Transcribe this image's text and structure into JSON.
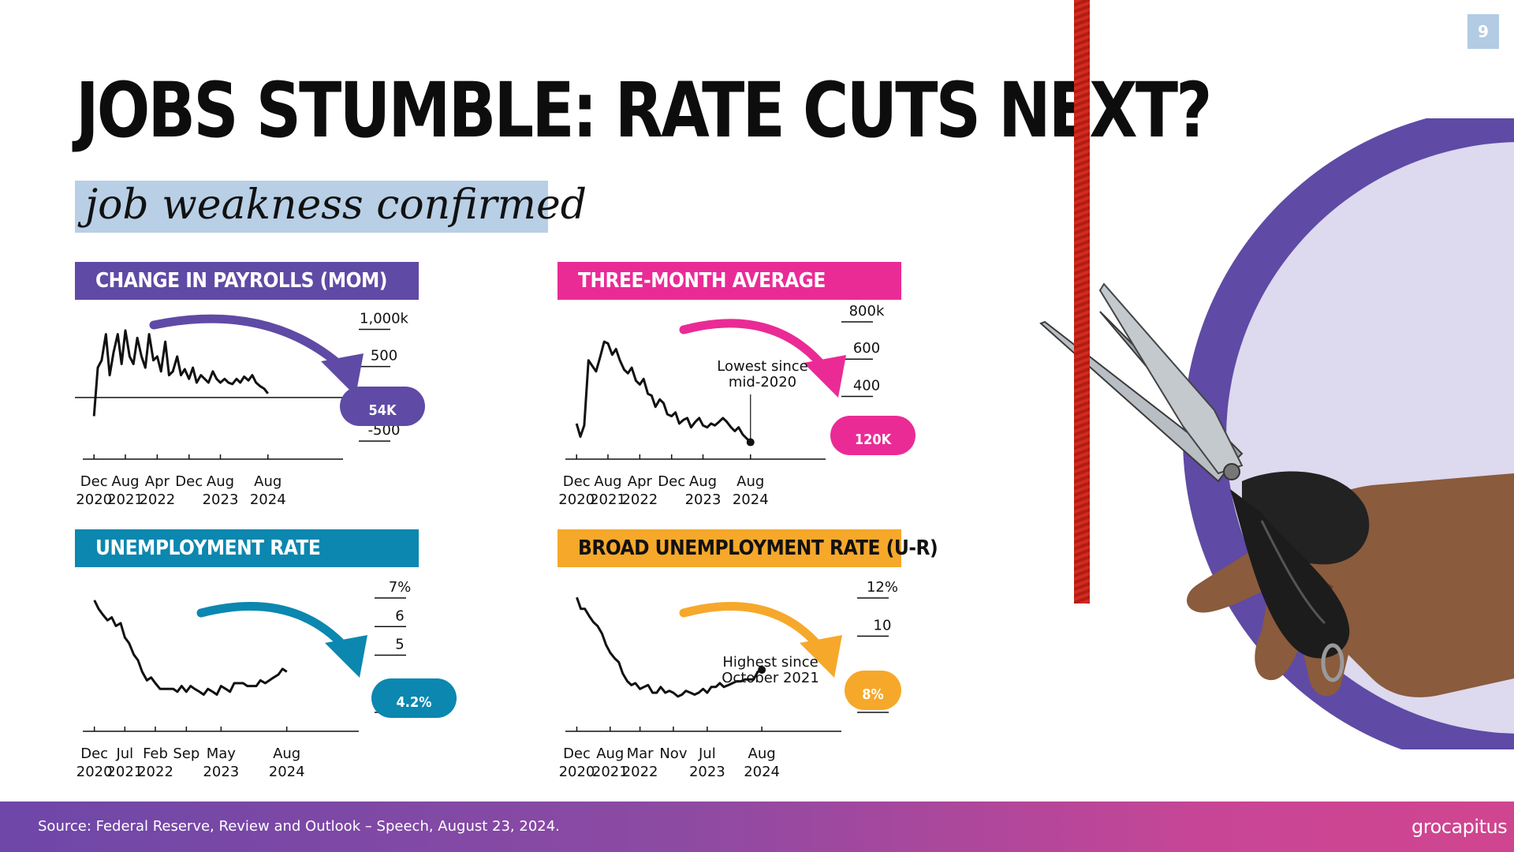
{
  "slide": {
    "page_number": "9",
    "title": "JOBS STUMBLE: RATE CUTS NEXT?",
    "subtitle": "job weakness confirmed"
  },
  "colors": {
    "purple": "#5f4aa5",
    "magenta": "#ea2b96",
    "blue": "#0b87b0",
    "orange": "#f6a82b",
    "lavender": "#ddd9ee",
    "rope": "#d42a1e"
  },
  "footer": {
    "source": "Source: Federal Reserve, Review and Outlook – Speech, August 23, 2024.",
    "logo": "grocapitus"
  },
  "illustration": {
    "description_icon": "scissors-hand-icon"
  },
  "chart_data": [
    {
      "id": "payrolls",
      "type": "line",
      "title": "CHANGE IN PAYROLLS (MOM)",
      "ylim": [
        -700,
        1100
      ],
      "y_ticks": [
        "1,000k",
        "500",
        "-500"
      ],
      "y_tick_values": [
        1000,
        500,
        -500
      ],
      "x_ticks": [
        [
          "Dec",
          "2020"
        ],
        [
          "Aug",
          "2021"
        ],
        [
          "Apr",
          "2022"
        ],
        [
          "Dec",
          ""
        ],
        [
          "Aug",
          "2023"
        ],
        [
          "Aug",
          "2024"
        ]
      ],
      "x_tick_values": [
        2020.92,
        2021.58,
        2022.25,
        2022.92,
        2023.58,
        2024.58
      ],
      "xlim": [
        2020.85,
        2024.75
      ],
      "zero_line": true,
      "callout": "54K",
      "annotation": "",
      "series": [
        {
          "values": [
            [
              2020.92,
              -250
            ],
            [
              2021.0,
              400
            ],
            [
              2021.08,
              500
            ],
            [
              2021.17,
              850
            ],
            [
              2021.25,
              300
            ],
            [
              2021.33,
              600
            ],
            [
              2021.42,
              850
            ],
            [
              2021.5,
              450
            ],
            [
              2021.58,
              900
            ],
            [
              2021.67,
              550
            ],
            [
              2021.75,
              450
            ],
            [
              2021.83,
              800
            ],
            [
              2021.92,
              550
            ],
            [
              2022.0,
              400
            ],
            [
              2022.08,
              850
            ],
            [
              2022.17,
              500
            ],
            [
              2022.25,
              550
            ],
            [
              2022.33,
              350
            ],
            [
              2022.42,
              750
            ],
            [
              2022.5,
              300
            ],
            [
              2022.58,
              350
            ],
            [
              2022.67,
              550
            ],
            [
              2022.75,
              300
            ],
            [
              2022.83,
              380
            ],
            [
              2022.92,
              250
            ],
            [
              2023.0,
              400
            ],
            [
              2023.08,
              200
            ],
            [
              2023.17,
              300
            ],
            [
              2023.25,
              250
            ],
            [
              2023.33,
              200
            ],
            [
              2023.42,
              350
            ],
            [
              2023.5,
              250
            ],
            [
              2023.58,
              200
            ],
            [
              2023.67,
              250
            ],
            [
              2023.75,
              200
            ],
            [
              2023.83,
              180
            ],
            [
              2023.92,
              250
            ],
            [
              2024.0,
              200
            ],
            [
              2024.08,
              280
            ],
            [
              2024.17,
              230
            ],
            [
              2024.25,
              300
            ],
            [
              2024.33,
              200
            ],
            [
              2024.42,
              150
            ],
            [
              2024.5,
              120
            ],
            [
              2024.58,
              54
            ]
          ]
        }
      ]
    },
    {
      "id": "three-month",
      "type": "line",
      "title": "THREE-MONTH AVERAGE",
      "ylim": [
        80,
        800
      ],
      "y_ticks": [
        "800k",
        "600",
        "400",
        "200"
      ],
      "y_tick_values": [
        800,
        600,
        400,
        200
      ],
      "x_ticks": [
        [
          "Dec",
          "2020"
        ],
        [
          "Aug",
          "2021"
        ],
        [
          "Apr",
          "2022"
        ],
        [
          "Dec",
          ""
        ],
        [
          "Aug",
          "2023"
        ],
        [
          "Aug",
          "2024"
        ]
      ],
      "x_tick_values": [
        2020.92,
        2021.58,
        2022.25,
        2022.92,
        2023.58,
        2024.58
      ],
      "xlim": [
        2020.85,
        2024.75
      ],
      "zero_line": false,
      "callout": "120K",
      "annotation": [
        "Lowest since",
        "mid-2020"
      ],
      "series": [
        {
          "values": [
            [
              2020.92,
              220
            ],
            [
              2021.0,
              150
            ],
            [
              2021.08,
              210
            ],
            [
              2021.17,
              560
            ],
            [
              2021.25,
              530
            ],
            [
              2021.33,
              500
            ],
            [
              2021.42,
              580
            ],
            [
              2021.5,
              660
            ],
            [
              2021.58,
              650
            ],
            [
              2021.67,
              590
            ],
            [
              2021.75,
              620
            ],
            [
              2021.83,
              560
            ],
            [
              2021.92,
              510
            ],
            [
              2022.0,
              490
            ],
            [
              2022.08,
              520
            ],
            [
              2022.17,
              450
            ],
            [
              2022.25,
              430
            ],
            [
              2022.33,
              460
            ],
            [
              2022.42,
              380
            ],
            [
              2022.5,
              370
            ],
            [
              2022.58,
              310
            ],
            [
              2022.67,
              350
            ],
            [
              2022.75,
              330
            ],
            [
              2022.83,
              270
            ],
            [
              2022.92,
              260
            ],
            [
              2023.0,
              280
            ],
            [
              2023.08,
              220
            ],
            [
              2023.17,
              240
            ],
            [
              2023.25,
              250
            ],
            [
              2023.33,
              200
            ],
            [
              2023.42,
              230
            ],
            [
              2023.5,
              250
            ],
            [
              2023.58,
              210
            ],
            [
              2023.67,
              200
            ],
            [
              2023.75,
              220
            ],
            [
              2023.83,
              210
            ],
            [
              2023.92,
              230
            ],
            [
              2024.0,
              250
            ],
            [
              2024.08,
              230
            ],
            [
              2024.17,
              200
            ],
            [
              2024.25,
              180
            ],
            [
              2024.33,
              200
            ],
            [
              2024.42,
              160
            ],
            [
              2024.5,
              140
            ],
            [
              2024.58,
              120
            ]
          ]
        }
      ]
    },
    {
      "id": "unemployment",
      "type": "line",
      "title": "UNEMPLOYMENT RATE",
      "ylim": [
        3,
        7
      ],
      "y_ticks": [
        "7%",
        "6",
        "5",
        "3"
      ],
      "y_tick_values": [
        7,
        6,
        5,
        3
      ],
      "x_ticks": [
        [
          "Dec",
          "2020"
        ],
        [
          "Jul",
          "2021"
        ],
        [
          "Feb",
          "2022"
        ],
        [
          "Sep",
          ""
        ],
        [
          "May",
          "2023"
        ],
        [
          "Aug",
          "2024"
        ]
      ],
      "x_tick_values": [
        2020.92,
        2021.5,
        2022.08,
        2022.67,
        2023.33,
        2024.58
      ],
      "xlim": [
        2020.85,
        2024.75
      ],
      "zero_line": false,
      "callout": "4.2%",
      "annotation": "",
      "series": [
        {
          "values": [
            [
              2020.92,
              6.7
            ],
            [
              2021.0,
              6.4
            ],
            [
              2021.08,
              6.2
            ],
            [
              2021.17,
              6.0
            ],
            [
              2021.25,
              6.1
            ],
            [
              2021.33,
              5.8
            ],
            [
              2021.42,
              5.9
            ],
            [
              2021.5,
              5.4
            ],
            [
              2021.58,
              5.2
            ],
            [
              2021.67,
              4.8
            ],
            [
              2021.75,
              4.6
            ],
            [
              2021.83,
              4.2
            ],
            [
              2021.92,
              3.9
            ],
            [
              2022.0,
              4.0
            ],
            [
              2022.08,
              3.8
            ],
            [
              2022.17,
              3.6
            ],
            [
              2022.25,
              3.6
            ],
            [
              2022.33,
              3.6
            ],
            [
              2022.42,
              3.6
            ],
            [
              2022.5,
              3.5
            ],
            [
              2022.58,
              3.7
            ],
            [
              2022.67,
              3.5
            ],
            [
              2022.75,
              3.7
            ],
            [
              2022.83,
              3.6
            ],
            [
              2022.92,
              3.5
            ],
            [
              2023.0,
              3.4
            ],
            [
              2023.08,
              3.6
            ],
            [
              2023.17,
              3.5
            ],
            [
              2023.25,
              3.4
            ],
            [
              2023.33,
              3.7
            ],
            [
              2023.42,
              3.6
            ],
            [
              2023.5,
              3.5
            ],
            [
              2023.58,
              3.8
            ],
            [
              2023.67,
              3.8
            ],
            [
              2023.75,
              3.8
            ],
            [
              2023.83,
              3.7
            ],
            [
              2023.92,
              3.7
            ],
            [
              2024.0,
              3.7
            ],
            [
              2024.08,
              3.9
            ],
            [
              2024.17,
              3.8
            ],
            [
              2024.25,
              3.9
            ],
            [
              2024.33,
              4.0
            ],
            [
              2024.42,
              4.1
            ],
            [
              2024.5,
              4.3
            ],
            [
              2024.58,
              4.2
            ]
          ]
        }
      ]
    },
    {
      "id": "broad-unemployment",
      "type": "line",
      "title": "BROAD UNEMPLOYMENT RATE (U-R)",
      "ylim": [
        6,
        12
      ],
      "y_ticks": [
        "12%",
        "10",
        "6"
      ],
      "y_tick_values": [
        12,
        10,
        6
      ],
      "x_ticks": [
        [
          "Dec",
          "2020"
        ],
        [
          "Aug",
          "2021"
        ],
        [
          "Mar",
          "2022"
        ],
        [
          "Nov",
          ""
        ],
        [
          "Jul",
          "2023"
        ],
        [
          "Aug",
          "2024"
        ]
      ],
      "x_tick_values": [
        2020.92,
        2021.58,
        2022.17,
        2022.83,
        2023.5,
        2024.58
      ],
      "xlim": [
        2020.85,
        2024.75
      ],
      "zero_line": false,
      "callout": "8%",
      "annotation": [
        "Highest since",
        "October 2021"
      ],
      "series": [
        {
          "values": [
            [
              2020.92,
              11.7
            ],
            [
              2021.0,
              11.1
            ],
            [
              2021.08,
              11.1
            ],
            [
              2021.17,
              10.7
            ],
            [
              2021.25,
              10.4
            ],
            [
              2021.33,
              10.2
            ],
            [
              2021.42,
              9.8
            ],
            [
              2021.5,
              9.2
            ],
            [
              2021.58,
              8.8
            ],
            [
              2021.67,
              8.5
            ],
            [
              2021.75,
              8.3
            ],
            [
              2021.83,
              7.7
            ],
            [
              2021.92,
              7.3
            ],
            [
              2022.0,
              7.1
            ],
            [
              2022.08,
              7.2
            ],
            [
              2022.17,
              6.9
            ],
            [
              2022.25,
              7.0
            ],
            [
              2022.33,
              7.1
            ],
            [
              2022.42,
              6.7
            ],
            [
              2022.5,
              6.7
            ],
            [
              2022.58,
              7.0
            ],
            [
              2022.67,
              6.7
            ],
            [
              2022.75,
              6.8
            ],
            [
              2022.83,
              6.7
            ],
            [
              2022.92,
              6.5
            ],
            [
              2023.0,
              6.6
            ],
            [
              2023.08,
              6.8
            ],
            [
              2023.17,
              6.7
            ],
            [
              2023.25,
              6.6
            ],
            [
              2023.33,
              6.7
            ],
            [
              2023.42,
              6.9
            ],
            [
              2023.5,
              6.7
            ],
            [
              2023.58,
              7.0
            ],
            [
              2023.67,
              7.0
            ],
            [
              2023.75,
              7.2
            ],
            [
              2023.83,
              7.0
            ],
            [
              2023.92,
              7.1
            ],
            [
              2024.0,
              7.2
            ],
            [
              2024.08,
              7.3
            ],
            [
              2024.17,
              7.3
            ],
            [
              2024.25,
              7.4
            ],
            [
              2024.33,
              7.4
            ],
            [
              2024.42,
              7.4
            ],
            [
              2024.5,
              7.8
            ],
            [
              2024.58,
              7.9
            ]
          ]
        }
      ]
    }
  ]
}
